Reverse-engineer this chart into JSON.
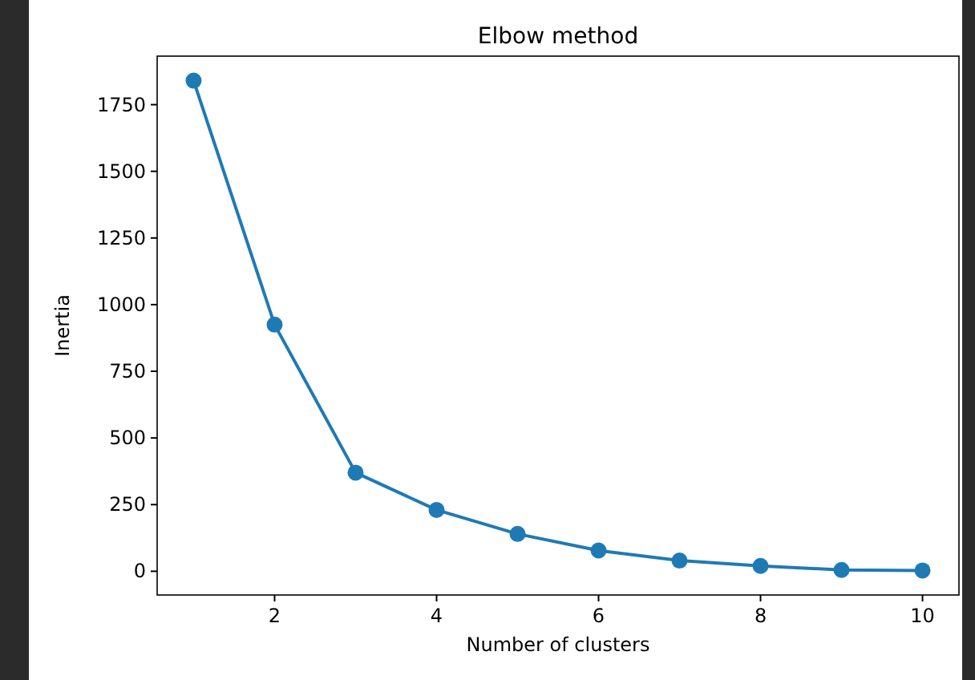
{
  "chart_data": {
    "type": "line",
    "title": "Elbow method",
    "xlabel": "Number of clusters",
    "ylabel": "Inertia",
    "x": [
      1,
      2,
      3,
      4,
      5,
      6,
      7,
      8,
      9,
      10
    ],
    "series": [
      {
        "color": "#1f7ab4",
        "values": [
          1840,
          925,
          370,
          230,
          140,
          78,
          40,
          20,
          5,
          3
        ]
      }
    ],
    "xlim": [
      0.55,
      10.45
    ],
    "xticks": [
      2,
      4,
      6,
      8,
      10
    ],
    "ylim": [
      -89,
      1932
    ],
    "yticks": [
      0,
      250,
      500,
      750,
      1000,
      1250,
      1500,
      1750
    ],
    "marker": "circle",
    "grid": false
  }
}
